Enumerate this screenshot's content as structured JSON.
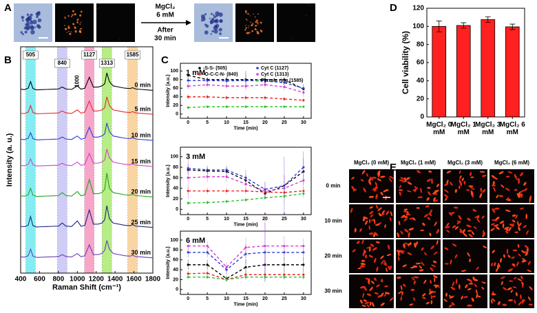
{
  "panel_labels": [
    "A",
    "B",
    "C",
    "D",
    "E"
  ],
  "panel_a": {
    "arrow_label_top": [
      "MgCl₂",
      "6 mM"
    ],
    "arrow_label_bottom": [
      "After",
      "30 min"
    ]
  },
  "panel_e": {
    "columns": [
      "MgCl₂ (0 mM)",
      "MgCl₂ (1 mM)",
      "MgCl₂ (3 mM)",
      "MgCl₂ (6 mM)"
    ],
    "rows": [
      "0 min",
      "10 min",
      "20 min",
      "30 min"
    ]
  },
  "chart_data": [
    {
      "type": "line",
      "xlabel": "Raman Shift (cm⁻¹)",
      "ylabel": "Intensity (a. u.)",
      "x": [
        400,
        440,
        480,
        505,
        530,
        570,
        620,
        680,
        740,
        800,
        840,
        880,
        940,
        1000,
        1040,
        1080,
        1127,
        1170,
        1220,
        1260,
        1290,
        1313,
        1340,
        1380,
        1440,
        1500,
        1560,
        1585,
        1620,
        1680,
        1740,
        1800
      ],
      "xlim": [
        400,
        1800
      ],
      "xticks": [
        400,
        600,
        800,
        1000,
        1200,
        1400,
        1600,
        1800
      ],
      "ylim": [
        0,
        104
      ],
      "bands": [
        {
          "x": 505,
          "color": "#22e0e8"
        },
        {
          "x": 840,
          "color": "#a9a3f0"
        },
        {
          "x": 1127,
          "color": "#f25c9c"
        },
        {
          "x": 1313,
          "color": "#7be020"
        },
        {
          "x": 1585,
          "color": "#f7b45a"
        }
      ],
      "peak_labels": [
        1000
      ],
      "series_labels_at_end": true,
      "series": [
        {
          "name": "0 min",
          "color": "#000000",
          "values": [
            84.5,
            84.3,
            85,
            88,
            84.8,
            84.2,
            84.3,
            84.4,
            84.5,
            84.6,
            85.5,
            84.6,
            84.4,
            86,
            84.5,
            85,
            90,
            85.5,
            85.5,
            86,
            87,
            92,
            88,
            86,
            85.5,
            85,
            84.8,
            85.2,
            84.6,
            84.4,
            84.2,
            84
          ]
        },
        {
          "name": "5 min",
          "color": "#e8262a",
          "values": [
            73.5,
            73.3,
            74,
            77,
            73.8,
            73.2,
            73.3,
            73.4,
            73.5,
            73.6,
            74.5,
            73.6,
            73.4,
            75,
            73.5,
            74,
            79,
            74.5,
            74.5,
            75,
            76,
            81,
            77,
            75,
            74.5,
            74,
            73.8,
            74.2,
            73.6,
            73.4,
            73.2,
            73
          ]
        },
        {
          "name": "10 min",
          "color": "#2b3bd6",
          "values": [
            61.5,
            61.3,
            62,
            64.5,
            61.8,
            61.2,
            61.3,
            61.4,
            61.5,
            61.6,
            62.5,
            61.6,
            61.4,
            63,
            61.5,
            62,
            67,
            62.5,
            62.5,
            63,
            64,
            69,
            65,
            63,
            62.5,
            62,
            61.8,
            62.2,
            61.6,
            61.4,
            61.2,
            61
          ]
        },
        {
          "name": "15 min",
          "color": "#cc44cc",
          "values": [
            49.5,
            49.3,
            50,
            52.5,
            49.8,
            49.2,
            49.3,
            49.4,
            49.5,
            49.6,
            50.5,
            49.6,
            49.4,
            51,
            49.5,
            50,
            55,
            50.5,
            50.5,
            51,
            52,
            57,
            53,
            51,
            50.5,
            50,
            49.8,
            50.2,
            49.6,
            49.4,
            49.2,
            49
          ]
        },
        {
          "name": "20 min",
          "color": "#1fa51f",
          "values": [
            35.5,
            35.3,
            36,
            39,
            35.8,
            35.2,
            35.3,
            35.4,
            35.5,
            35.6,
            37,
            35.6,
            35.4,
            37.5,
            35.5,
            36,
            43,
            36.5,
            36.5,
            37,
            38.5,
            46,
            39,
            37,
            36.5,
            36,
            35.8,
            36.2,
            35.6,
            35.4,
            35.2,
            35
          ]
        },
        {
          "name": "25 min",
          "color": "#1a237e",
          "values": [
            21.5,
            21.3,
            22,
            26,
            21.8,
            21.2,
            21.3,
            21.4,
            21.5,
            21.6,
            23,
            21.6,
            21.4,
            24,
            21.5,
            22,
            29,
            22.5,
            22.5,
            23,
            24.5,
            31,
            25,
            23,
            22.5,
            22,
            21.8,
            22.2,
            21.6,
            21.4,
            21.2,
            21
          ]
        },
        {
          "name": "30 min",
          "color": "#6a3cb8",
          "values": [
            7.5,
            7.3,
            8,
            11,
            7.8,
            7.2,
            7.3,
            7.4,
            7.5,
            7.6,
            8.5,
            7.6,
            7.4,
            9,
            7.5,
            8,
            13,
            8.5,
            8.5,
            9,
            10.5,
            15,
            11,
            9,
            8.5,
            8,
            7.8,
            8.2,
            7.6,
            7.4,
            7.2,
            7
          ]
        }
      ]
    },
    {
      "type": "line",
      "title": "1 mM",
      "xlabel": "Time (min)",
      "ylabel": "Intensity (a.u.)",
      "x": [
        0,
        5,
        10,
        15,
        20,
        25,
        30
      ],
      "xlim": [
        -2,
        32
      ],
      "xticks": [
        0,
        5,
        10,
        15,
        20,
        25,
        30
      ],
      "ylim": [
        -10,
        118
      ],
      "yticks": [
        0,
        20,
        40,
        60,
        80,
        100
      ],
      "linestyle": "dashed",
      "markers": true,
      "legend": true,
      "series": [
        {
          "name": "-S-S- (505)",
          "color": "#000000",
          "values": [
            90,
            80,
            80,
            80,
            80,
            80,
            58
          ],
          "errors": [
            10,
            6,
            8,
            20,
            8,
            6,
            8
          ]
        },
        {
          "name": "-O-C-C-N- (840)",
          "color": "#e8262a",
          "values": [
            40,
            40,
            38,
            38,
            38,
            35,
            32
          ],
          "errors": [
            6,
            5,
            5,
            6,
            5,
            5,
            5
          ]
        },
        {
          "name": "Cyt C (1127)",
          "color": "#2b3bd6",
          "values": [
            78,
            78,
            77,
            78,
            77,
            73,
            60
          ],
          "errors": [
            8,
            6,
            8,
            12,
            8,
            8,
            10
          ]
        },
        {
          "name": "Cyt C (1313)",
          "color": "#d23cd2",
          "values": [
            65,
            68,
            65,
            65,
            68,
            63,
            50
          ],
          "errors": [
            8,
            6,
            6,
            10,
            8,
            8,
            10
          ]
        },
        {
          "name": "Pyrrole ring (1585)",
          "color": "#2fbf2f",
          "values": [
            15,
            17,
            17,
            17,
            17,
            17,
            17
          ],
          "errors": [
            4,
            3,
            3,
            3,
            3,
            3,
            3
          ]
        }
      ]
    },
    {
      "type": "line",
      "title": "3 mM",
      "xlabel": "Time (min)",
      "ylabel": "Intensity (a.u.)",
      "x": [
        0,
        5,
        10,
        15,
        20,
        25,
        30
      ],
      "xlim": [
        -2,
        32
      ],
      "xticks": [
        0,
        5,
        10,
        15,
        20,
        25,
        30
      ],
      "ylim": [
        -10,
        118
      ],
      "yticks": [
        0,
        20,
        40,
        60,
        80,
        100
      ],
      "linestyle": "dashed",
      "markers": true,
      "series": [
        {
          "color": "#000000",
          "values": [
            75,
            73,
            72,
            55,
            30,
            45,
            72
          ],
          "errors": [
            10,
            8,
            8,
            10,
            10,
            20,
            25
          ]
        },
        {
          "color": "#e8262a",
          "values": [
            35,
            35,
            35,
            35,
            33,
            32,
            35
          ],
          "errors": [
            8,
            6,
            6,
            6,
            6,
            6,
            8
          ]
        },
        {
          "color": "#2b3bd6",
          "values": [
            78,
            75,
            75,
            60,
            38,
            45,
            80
          ],
          "errors": [
            10,
            8,
            8,
            15,
            15,
            55,
            30
          ]
        },
        {
          "color": "#d23cd2",
          "values": [
            60,
            62,
            62,
            48,
            35,
            40,
            55
          ],
          "errors": [
            40,
            10,
            10,
            15,
            15,
            25,
            30
          ]
        },
        {
          "color": "#2fbf2f",
          "values": [
            12,
            13,
            15,
            18,
            22,
            25,
            30
          ],
          "errors": [
            4,
            4,
            4,
            5,
            5,
            6,
            8
          ]
        }
      ]
    },
    {
      "type": "line",
      "title": "6 mM",
      "xlabel": "Time (min)",
      "ylabel": "Intensity (a.u.)",
      "x": [
        0,
        5,
        10,
        15,
        20,
        25,
        30
      ],
      "xlim": [
        -2,
        32
      ],
      "xticks": [
        0,
        5,
        10,
        15,
        20,
        25,
        30
      ],
      "ylim": [
        -10,
        118
      ],
      "yticks": [
        0,
        20,
        40,
        60,
        80,
        100
      ],
      "linestyle": "dashed",
      "markers": true,
      "series": [
        {
          "color": "#000000",
          "values": [
            50,
            50,
            22,
            45,
            50,
            50,
            50
          ],
          "errors": [
            10,
            10,
            6,
            15,
            30,
            15,
            15
          ]
        },
        {
          "color": "#e8262a",
          "values": [
            32,
            33,
            20,
            30,
            30,
            30,
            30
          ],
          "errors": [
            6,
            6,
            5,
            8,
            8,
            6,
            6
          ]
        },
        {
          "color": "#2b3bd6",
          "values": [
            75,
            75,
            40,
            72,
            75,
            75,
            75
          ],
          "errors": [
            10,
            10,
            10,
            20,
            60,
            15,
            15
          ]
        },
        {
          "color": "#d23cd2",
          "values": [
            88,
            88,
            45,
            85,
            88,
            88,
            88
          ],
          "errors": [
            10,
            10,
            10,
            20,
            60,
            20,
            15
          ]
        },
        {
          "color": "#2fbf2f",
          "values": [
            25,
            25,
            20,
            25,
            25,
            25,
            25
          ],
          "errors": [
            5,
            5,
            4,
            6,
            8,
            6,
            6
          ]
        }
      ]
    },
    {
      "type": "bar",
      "ylabel": "Cell viability (%)",
      "categories": [
        "MgCl₂ 0 mM",
        "MgCl₂ 1 mM",
        "MgCl₂ 3 mM",
        "MgCl₂ 6 mM"
      ],
      "values": [
        100,
        101,
        107.5,
        99.5
      ],
      "errors": [
        6,
        3,
        3,
        3
      ],
      "color": "#ff2020",
      "ylim": [
        0,
        120
      ],
      "yticks": [
        0,
        20,
        40,
        60,
        80,
        100,
        120
      ]
    }
  ]
}
